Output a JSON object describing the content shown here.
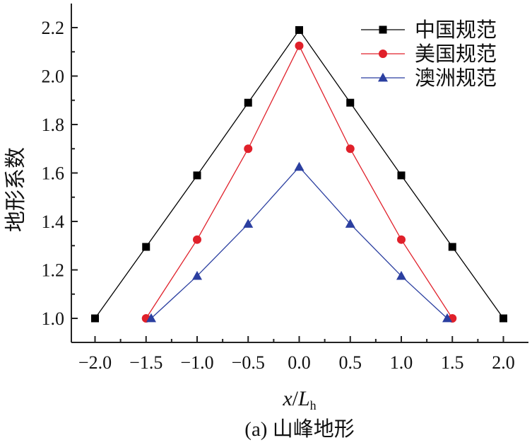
{
  "chart_data": {
    "type": "line",
    "caption": "(a) 山峰地形",
    "xlabel_main": "x",
    "xlabel_sep": "/",
    "xlabel_var": "L",
    "xlabel_sub": "h",
    "ylabel": "地形系数",
    "xlim": [
      -2.5,
      2.25
    ],
    "ylim": [
      0.9,
      2.3
    ],
    "x_ticks": [
      -2.0,
      -1.5,
      -1.0,
      -0.5,
      0.0,
      0.5,
      1.0,
      1.5,
      2.0
    ],
    "x_tick_labels": [
      "−2.0",
      "−1.5",
      "−1.0",
      "−0.5",
      "0.0",
      "0.5",
      "1.0",
      "1.5",
      "2.0"
    ],
    "y_ticks": [
      1.0,
      1.2,
      1.4,
      1.6,
      1.8,
      2.0,
      2.2
    ],
    "y_tick_labels": [
      "1.0",
      "1.2",
      "1.4",
      "1.6",
      "1.8",
      "2.0",
      "2.2"
    ],
    "grid": false,
    "legend_position": "top-right",
    "series": [
      {
        "name": "中国规范",
        "color": "#000000",
        "marker": "square",
        "x": [
          -2.0,
          -1.5,
          -1.0,
          -0.5,
          0.0,
          0.5,
          1.0,
          1.5,
          2.0
        ],
        "y": [
          1.0,
          1.295,
          1.59,
          1.89,
          2.19,
          1.89,
          1.59,
          1.295,
          1.0
        ]
      },
      {
        "name": "美国规范",
        "color": "#e0202a",
        "marker": "circle",
        "x": [
          -1.5,
          -1.0,
          -0.5,
          0.0,
          0.5,
          1.0,
          1.5
        ],
        "y": [
          1.0,
          1.325,
          1.7,
          2.125,
          1.7,
          1.325,
          1.0
        ]
      },
      {
        "name": "澳洲规范",
        "color": "#2b3fa0",
        "marker": "triangle",
        "x": [
          -1.45,
          -1.0,
          -0.5,
          0.0,
          0.5,
          1.0,
          1.45
        ],
        "y": [
          1.0,
          1.175,
          1.39,
          1.625,
          1.39,
          1.175,
          1.0
        ]
      }
    ]
  }
}
